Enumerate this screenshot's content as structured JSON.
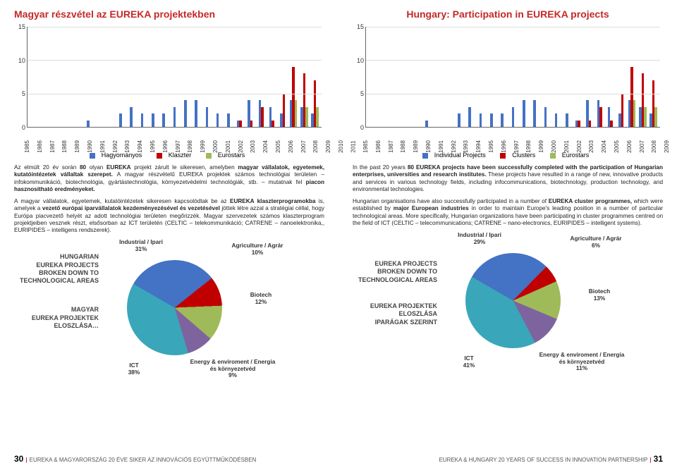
{
  "left": {
    "title": "Magyar részvétel az EUREKA projektekben",
    "legend": {
      "a": "Hagyományos",
      "b": "Klaszter",
      "c": "Eurostars"
    },
    "para1_a": "Az elmúlt 20 év során ",
    "para1_b": "80",
    "para1_c": " olyan ",
    "para1_d": "EUREKA",
    "para1_e": " projekt zárult le sikeresen, amelyben ",
    "para1_f": "magyar vállalatok, egyetemek, kutatóintézetek vállaltak szerepet.",
    "para1_g": " A magyar részvételű EUREKA projektek számos technológiai területen – infokommunikáció, biotechnológia, gyártástechnológia, környezetvédelmi technológiák, stb. – mutatnak fel ",
    "para1_h": "piacon hasznosítható eredményeket.",
    "para2_a": "A magyar vállalatok, egyetemek, kutatóintézetek sikeresen kapcsolódtak be az ",
    "para2_b": "EUREKA klaszterprogramokba",
    "para2_c": " is, amelyek a ",
    "para2_d": "vezető európai iparvállalatok kezdeményezésével és vezetésével",
    "para2_e": " jöttek létre azzal a stratégiai céllal, hogy Európa piacvezető helyét az adott technológiai területen megőrizzék. Magyar szervezetek számos klaszterprogram projektjeiben vesznek részt, elsősorban az ICT területén (CELTIC – telekommunikáció; CATRENE – nanoelektronika,, EURIPIDES – intelligens rendszerek).",
    "pie_side1": "Hungarian",
    "pie_side2": "EUREKA PROJECTS",
    "pie_side3": "BROKEN DOWN TO",
    "pie_side4": "TECHNOLOGICAL AREAS",
    "pie_side5": "MAGYAR",
    "pie_side6": "EUREKA PROJEKTEK",
    "pie_side7": "ELOSZLÁSA…",
    "pie_lab1": "Industrial / Ipari\n31%",
    "pie_lab2": "Agriculture / Agrár\n10%",
    "pie_lab3": "Biotech\n12%",
    "pie_lab4": "Energy & enviroment / Energia és környezetvéd\n9%",
    "pie_lab5": "ICT\n38%",
    "footer": "EUREKA & MAGYARORSZÁG 20 ÉVE SIKER AZ INNOVÁCIÓS EGYÜTTMŰKÖDÉSBEN",
    "page": "30"
  },
  "right": {
    "title": "Hungary: Participation in EUREKA projects",
    "legend": {
      "a": "Individual Projects",
      "b": "Clusters",
      "c": "Eurostars"
    },
    "para1_a": "In the past 20 years ",
    "para1_b": "80 EUREKA projects have been successfully completed with the participation of Hungarian enterprises, universities and research institutes.",
    "para1_c": " These projects have resulted in a range of new, innovative products and services in various technology fields, including infocommunications, biotechnology, production technology, and environmental technologies.",
    "para2_a": "Hungarian organisations have also successfully participated in a number of ",
    "para2_b": "EUREKA cluster programmes,",
    "para2_c": " which were established by ",
    "para2_d": "major European industries",
    "para2_e": " in order to maintain Europe's leading position in a number of particular technological areas. More specifically, Hungarian organizations have been participating in cluster programmes centred on the field of ICT (CELTIC – telecommunications; CATRENE – nano-electronics, EURIPIDES – intelligent systems).",
    "pie_side2": "EUREKA PROJECTS",
    "pie_side3": "BROKEN DOWN TO",
    "pie_side4": "TECHNOLOGICAL AREAS",
    "pie_side6": "EUREKA PROJEKTEK",
    "pie_side7": "ELOSZLÁSA",
    "pie_side8": "IPARÁGAK SZERINT",
    "pie_lab1": "Industrial / Ipari\n29%",
    "pie_lab2": "Agriculture / Agrár\n6%",
    "pie_lab3": "Biotech\n13%",
    "pie_lab4": "Energy & enviroment / Energia és környezetvéd\n11%",
    "pie_lab5": "ICT\n41%",
    "footer": "EUREKA & HUNGARY 20 YEARS OF SUCCESS IN INNOVATION PARTNERSHIP",
    "page": "31"
  },
  "chart": {
    "ylim": [
      0,
      15
    ],
    "yticks": [
      0,
      5,
      10,
      15
    ],
    "years": [
      "1985",
      "1986",
      "1987",
      "1988",
      "1989",
      "1990",
      "1991",
      "1992",
      "1993",
      "1994",
      "1995",
      "1996",
      "1997",
      "1998",
      "1999",
      "2000",
      "2001",
      "2002",
      "2003",
      "2004",
      "2005",
      "2006",
      "2007",
      "2008",
      "2009",
      "2010",
      "2011"
    ],
    "series": {
      "a": [
        0,
        0,
        0,
        0,
        0,
        1,
        0,
        0,
        2,
        3,
        2,
        2,
        2,
        3,
        4,
        4,
        3,
        2,
        2,
        1,
        4,
        4,
        3,
        2,
        4,
        3,
        2
      ],
      "b": [
        0,
        0,
        0,
        0,
        0,
        0,
        0,
        0,
        0,
        0,
        0,
        0,
        0,
        0,
        0,
        0,
        0,
        0,
        0,
        1,
        1,
        3,
        1,
        5,
        9,
        8,
        7
      ],
      "c": [
        0,
        0,
        0,
        0,
        0,
        0,
        0,
        0,
        0,
        0,
        0,
        0,
        0,
        0,
        0,
        0,
        0,
        0,
        0,
        0,
        0,
        0,
        0,
        0,
        4,
        3,
        3
      ]
    },
    "colors": {
      "a": "#4472c4",
      "b": "#c00000",
      "c": "#9fba59"
    },
    "grid_color": "#dddddd",
    "axis_color": "#666666"
  },
  "pie_left": {
    "slices": [
      {
        "label": "Industrial",
        "pct": 31,
        "color": "#4472c4"
      },
      {
        "label": "Agriculture",
        "pct": 10,
        "color": "#c00000"
      },
      {
        "label": "Biotech",
        "pct": 12,
        "color": "#9fba59"
      },
      {
        "label": "Energy",
        "pct": 9,
        "color": "#7e649e"
      },
      {
        "label": "ICT",
        "pct": 38,
        "color": "#3aa6b9"
      }
    ]
  },
  "pie_right": {
    "slices": [
      {
        "label": "Industrial",
        "pct": 29,
        "color": "#4472c4"
      },
      {
        "label": "Agriculture",
        "pct": 6,
        "color": "#c00000"
      },
      {
        "label": "Biotech",
        "pct": 13,
        "color": "#9fba59"
      },
      {
        "label": "Energy",
        "pct": 11,
        "color": "#7e649e"
      },
      {
        "label": "ICT",
        "pct": 41,
        "color": "#3aa6b9"
      }
    ]
  }
}
